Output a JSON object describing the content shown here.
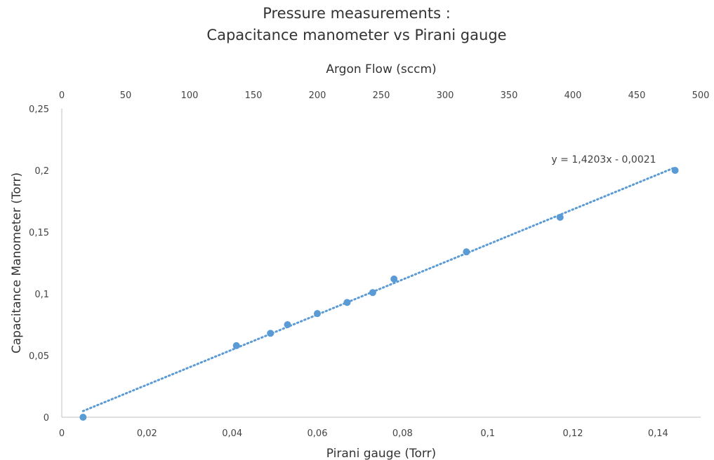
{
  "chart_data": {
    "type": "scatter",
    "title": [
      "Pressure measurements :",
      "Capacitance manometer vs Pirani gauge"
    ],
    "xlabel": "Pirani gauge (Torr)",
    "ylabel": "Capacitance Manometer (Torr)",
    "x2label": "Argon Flow (sccm)",
    "xlim": [
      0,
      0.15
    ],
    "ylim": [
      0,
      0.25
    ],
    "x2lim": [
      0,
      500
    ],
    "x_ticks": [
      "0",
      "0,02",
      "0,04",
      "0,06",
      "0,08",
      "0,1",
      "0,12",
      "0,14"
    ],
    "x_tick_values": [
      0,
      0.02,
      0.04,
      0.06,
      0.08,
      0.1,
      0.12,
      0.14
    ],
    "y_ticks": [
      "0",
      "0,05",
      "0,1",
      "0,15",
      "0,2",
      "0,25"
    ],
    "y_tick_values": [
      0,
      0.05,
      0.1,
      0.15,
      0.2,
      0.25
    ],
    "x2_ticks": [
      "0",
      "50",
      "100",
      "150",
      "200",
      "250",
      "300",
      "350",
      "400",
      "450",
      "500"
    ],
    "x2_tick_values": [
      0,
      50,
      100,
      150,
      200,
      250,
      300,
      350,
      400,
      450,
      500
    ],
    "grid": false,
    "series": [
      {
        "color": "#5b9bd5",
        "points": [
          {
            "x": 0.005,
            "y": 0.0
          },
          {
            "x": 0.041,
            "y": 0.058
          },
          {
            "x": 0.049,
            "y": 0.068
          },
          {
            "x": 0.053,
            "y": 0.075
          },
          {
            "x": 0.06,
            "y": 0.084
          },
          {
            "x": 0.067,
            "y": 0.093
          },
          {
            "x": 0.073,
            "y": 0.101
          },
          {
            "x": 0.078,
            "y": 0.112
          },
          {
            "x": 0.095,
            "y": 0.134
          },
          {
            "x": 0.117,
            "y": 0.162
          },
          {
            "x": 0.144,
            "y": 0.2
          }
        ],
        "trendline": {
          "type": "linear",
          "slope": 1.4203,
          "intercept": -0.0021,
          "x_range": [
            0.005,
            0.144
          ],
          "label": "y = 1,4203x - 0,0021",
          "style": "dotted"
        }
      }
    ]
  }
}
